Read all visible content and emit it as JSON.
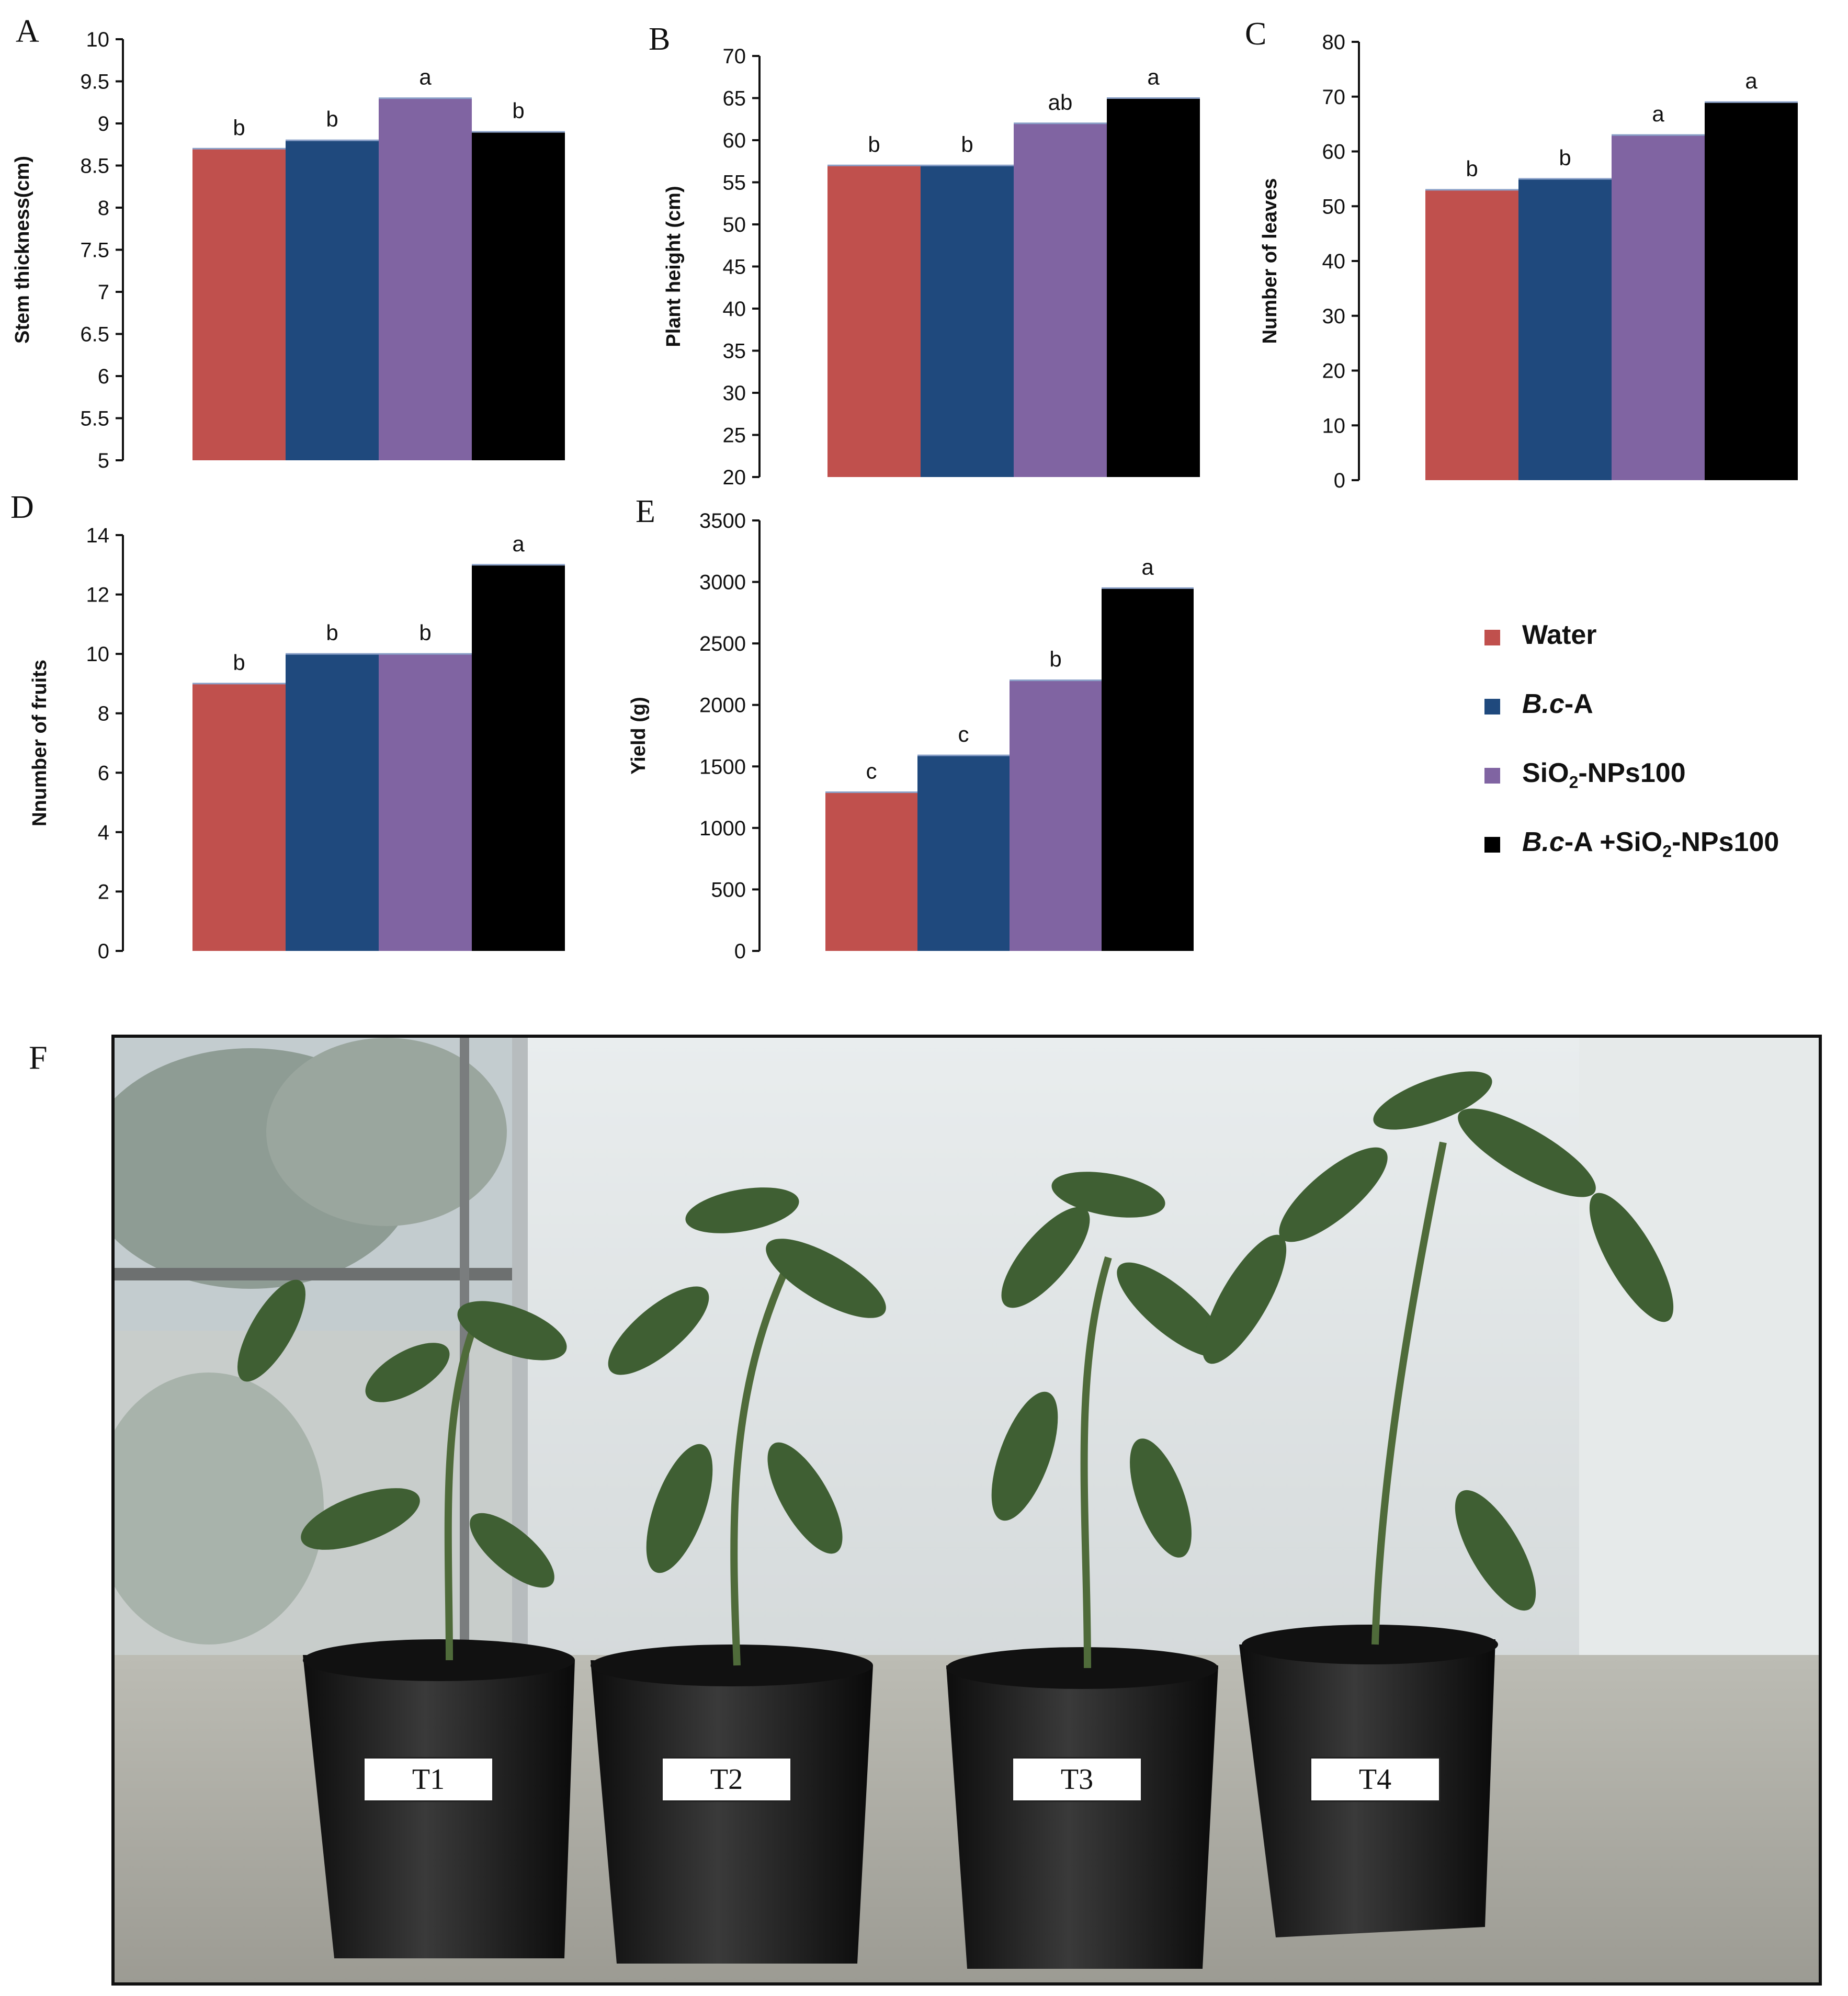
{
  "colors": {
    "water": "#c0504d",
    "bca": "#1f497d",
    "sio2": "#8064a2",
    "combo": "#000000"
  },
  "legend": {
    "items": [
      {
        "label": "Water",
        "color": "#c0504d"
      },
      {
        "label_html": "<i>B.c</i>-A",
        "color": "#1f497d"
      },
      {
        "label_html": "SiO<sub>2</sub>-NPs100",
        "color": "#8064a2"
      },
      {
        "label_html": "<i>B.c</i>-A +SiO<sub>2</sub>-NPs100",
        "color": "#000000"
      }
    ]
  },
  "chart_data": [
    {
      "panel": "A",
      "type": "bar",
      "ylabel": "Stem thickness(cm)",
      "ylim": [
        5,
        10
      ],
      "ticks": [
        5,
        5.5,
        6,
        6.5,
        7,
        7.5,
        8,
        8.5,
        9,
        9.5,
        10
      ],
      "series": [
        {
          "name": "Water",
          "value": 8.7,
          "sig": "b"
        },
        {
          "name": "B.c-A",
          "value": 8.8,
          "sig": "b"
        },
        {
          "name": "SiO2-NPs100",
          "value": 9.3,
          "sig": "a"
        },
        {
          "name": "B.c-A +SiO2-NPs100",
          "value": 8.9,
          "sig": "b"
        }
      ]
    },
    {
      "panel": "B",
      "type": "bar",
      "ylabel": "Plant height  (cm)",
      "ylim": [
        20,
        70
      ],
      "ticks": [
        20,
        25,
        30,
        35,
        40,
        45,
        50,
        55,
        60,
        65,
        70
      ],
      "series": [
        {
          "name": "Water",
          "value": 57,
          "sig": "b"
        },
        {
          "name": "B.c-A",
          "value": 57,
          "sig": "b"
        },
        {
          "name": "SiO2-NPs100",
          "value": 62,
          "sig": "ab"
        },
        {
          "name": "B.c-A +SiO2-NPs100",
          "value": 65,
          "sig": "a"
        }
      ]
    },
    {
      "panel": "C",
      "type": "bar",
      "ylabel": "Number of leaves",
      "ylim": [
        0,
        80
      ],
      "ticks": [
        0,
        10,
        20,
        30,
        40,
        50,
        60,
        70,
        80
      ],
      "series": [
        {
          "name": "Water",
          "value": 53,
          "sig": "b"
        },
        {
          "name": "B.c-A",
          "value": 55,
          "sig": "b"
        },
        {
          "name": "SiO2-NPs100",
          "value": 63,
          "sig": "a"
        },
        {
          "name": "B.c-A +SiO2-NPs100",
          "value": 69,
          "sig": "a"
        }
      ]
    },
    {
      "panel": "D",
      "type": "bar",
      "ylabel": "Nnumber of fruits",
      "ylim": [
        0,
        14
      ],
      "ticks": [
        0,
        2,
        4,
        6,
        8,
        10,
        12,
        14
      ],
      "series": [
        {
          "name": "Water",
          "value": 9,
          "sig": "b"
        },
        {
          "name": "B.c-A",
          "value": 10,
          "sig": "b"
        },
        {
          "name": "SiO2-NPs100",
          "value": 10,
          "sig": "b"
        },
        {
          "name": "B.c-A +SiO2-NPs100",
          "value": 13,
          "sig": "a"
        }
      ]
    },
    {
      "panel": "E",
      "type": "bar",
      "ylabel": "Yield (g)",
      "ylim": [
        0,
        3500
      ],
      "ticks": [
        0,
        500,
        1000,
        1500,
        2000,
        2500,
        3000,
        3500
      ],
      "series": [
        {
          "name": "Water",
          "value": 1290,
          "sig": "c"
        },
        {
          "name": "B.c-A",
          "value": 1590,
          "sig": "c"
        },
        {
          "name": "SiO2-NPs100",
          "value": 2200,
          "sig": "b"
        },
        {
          "name": "B.c-A +SiO2-NPs100",
          "value": 2950,
          "sig": "a"
        }
      ]
    }
  ],
  "photo": {
    "panel": "F",
    "labels": [
      "T1",
      "T2",
      "T3",
      "T4"
    ]
  }
}
